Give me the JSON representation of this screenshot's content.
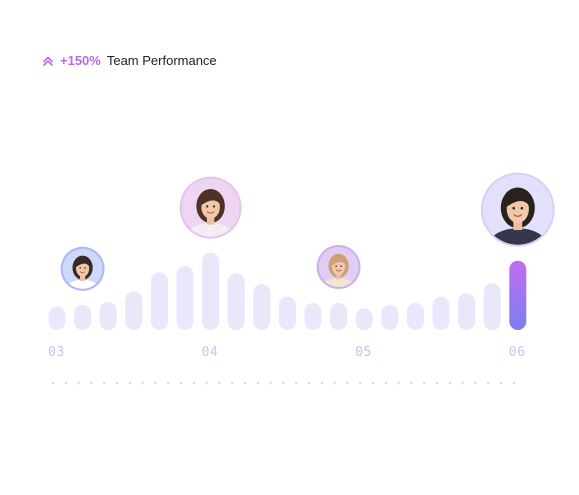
{
  "header": {
    "trend_icon": "double-chevron-up-icon",
    "growth": "+150%",
    "title": "Team Performance"
  },
  "colors": {
    "bar": "#e8e8fa",
    "bar_active_top": "#c26cf0",
    "bar_active_bottom": "#7b7ff2",
    "growth": "#b76ae8",
    "tick": "#c3c4ef",
    "dot": "#d9d9f3"
  },
  "chart_data": {
    "type": "bar",
    "values": [
      26,
      28,
      31,
      43,
      64,
      71,
      86,
      63,
      51,
      37,
      30,
      30,
      24,
      28,
      30,
      37,
      41,
      52,
      77
    ],
    "active_index": 18,
    "tick_labels": [
      {
        "label": "03",
        "index": 0
      },
      {
        "label": "04",
        "index": 6
      },
      {
        "label": "05",
        "index": 12
      },
      {
        "label": "06",
        "index": 18
      }
    ],
    "title": "",
    "xlabel": "",
    "ylabel": "",
    "grid": false,
    "avatars": [
      {
        "name": "avatar-woman-dark-hair",
        "index": 1,
        "ring": "#a9b8f2",
        "bg": "#cdd8fb",
        "hair": "#3b2a22",
        "shirt": "#ffffff",
        "size": "small"
      },
      {
        "name": "avatar-woman-brunette",
        "index": 6,
        "ring": "#e2c4ec",
        "bg": "#eed6f3",
        "hair": "#4e3226",
        "shirt": "#f3eef6",
        "size": "medium"
      },
      {
        "name": "avatar-woman-blonde",
        "index": 11,
        "ring": "#cdb0ea",
        "bg": "#e1cdf3",
        "hair": "#caa074",
        "shirt": "#efe6d8",
        "size": "small"
      },
      {
        "name": "avatar-man",
        "index": 18,
        "ring": "#d4d1f7",
        "bg": "#e2e0fb",
        "hair": "#2a211d",
        "shirt": "#34384a",
        "size": "large"
      }
    ]
  }
}
